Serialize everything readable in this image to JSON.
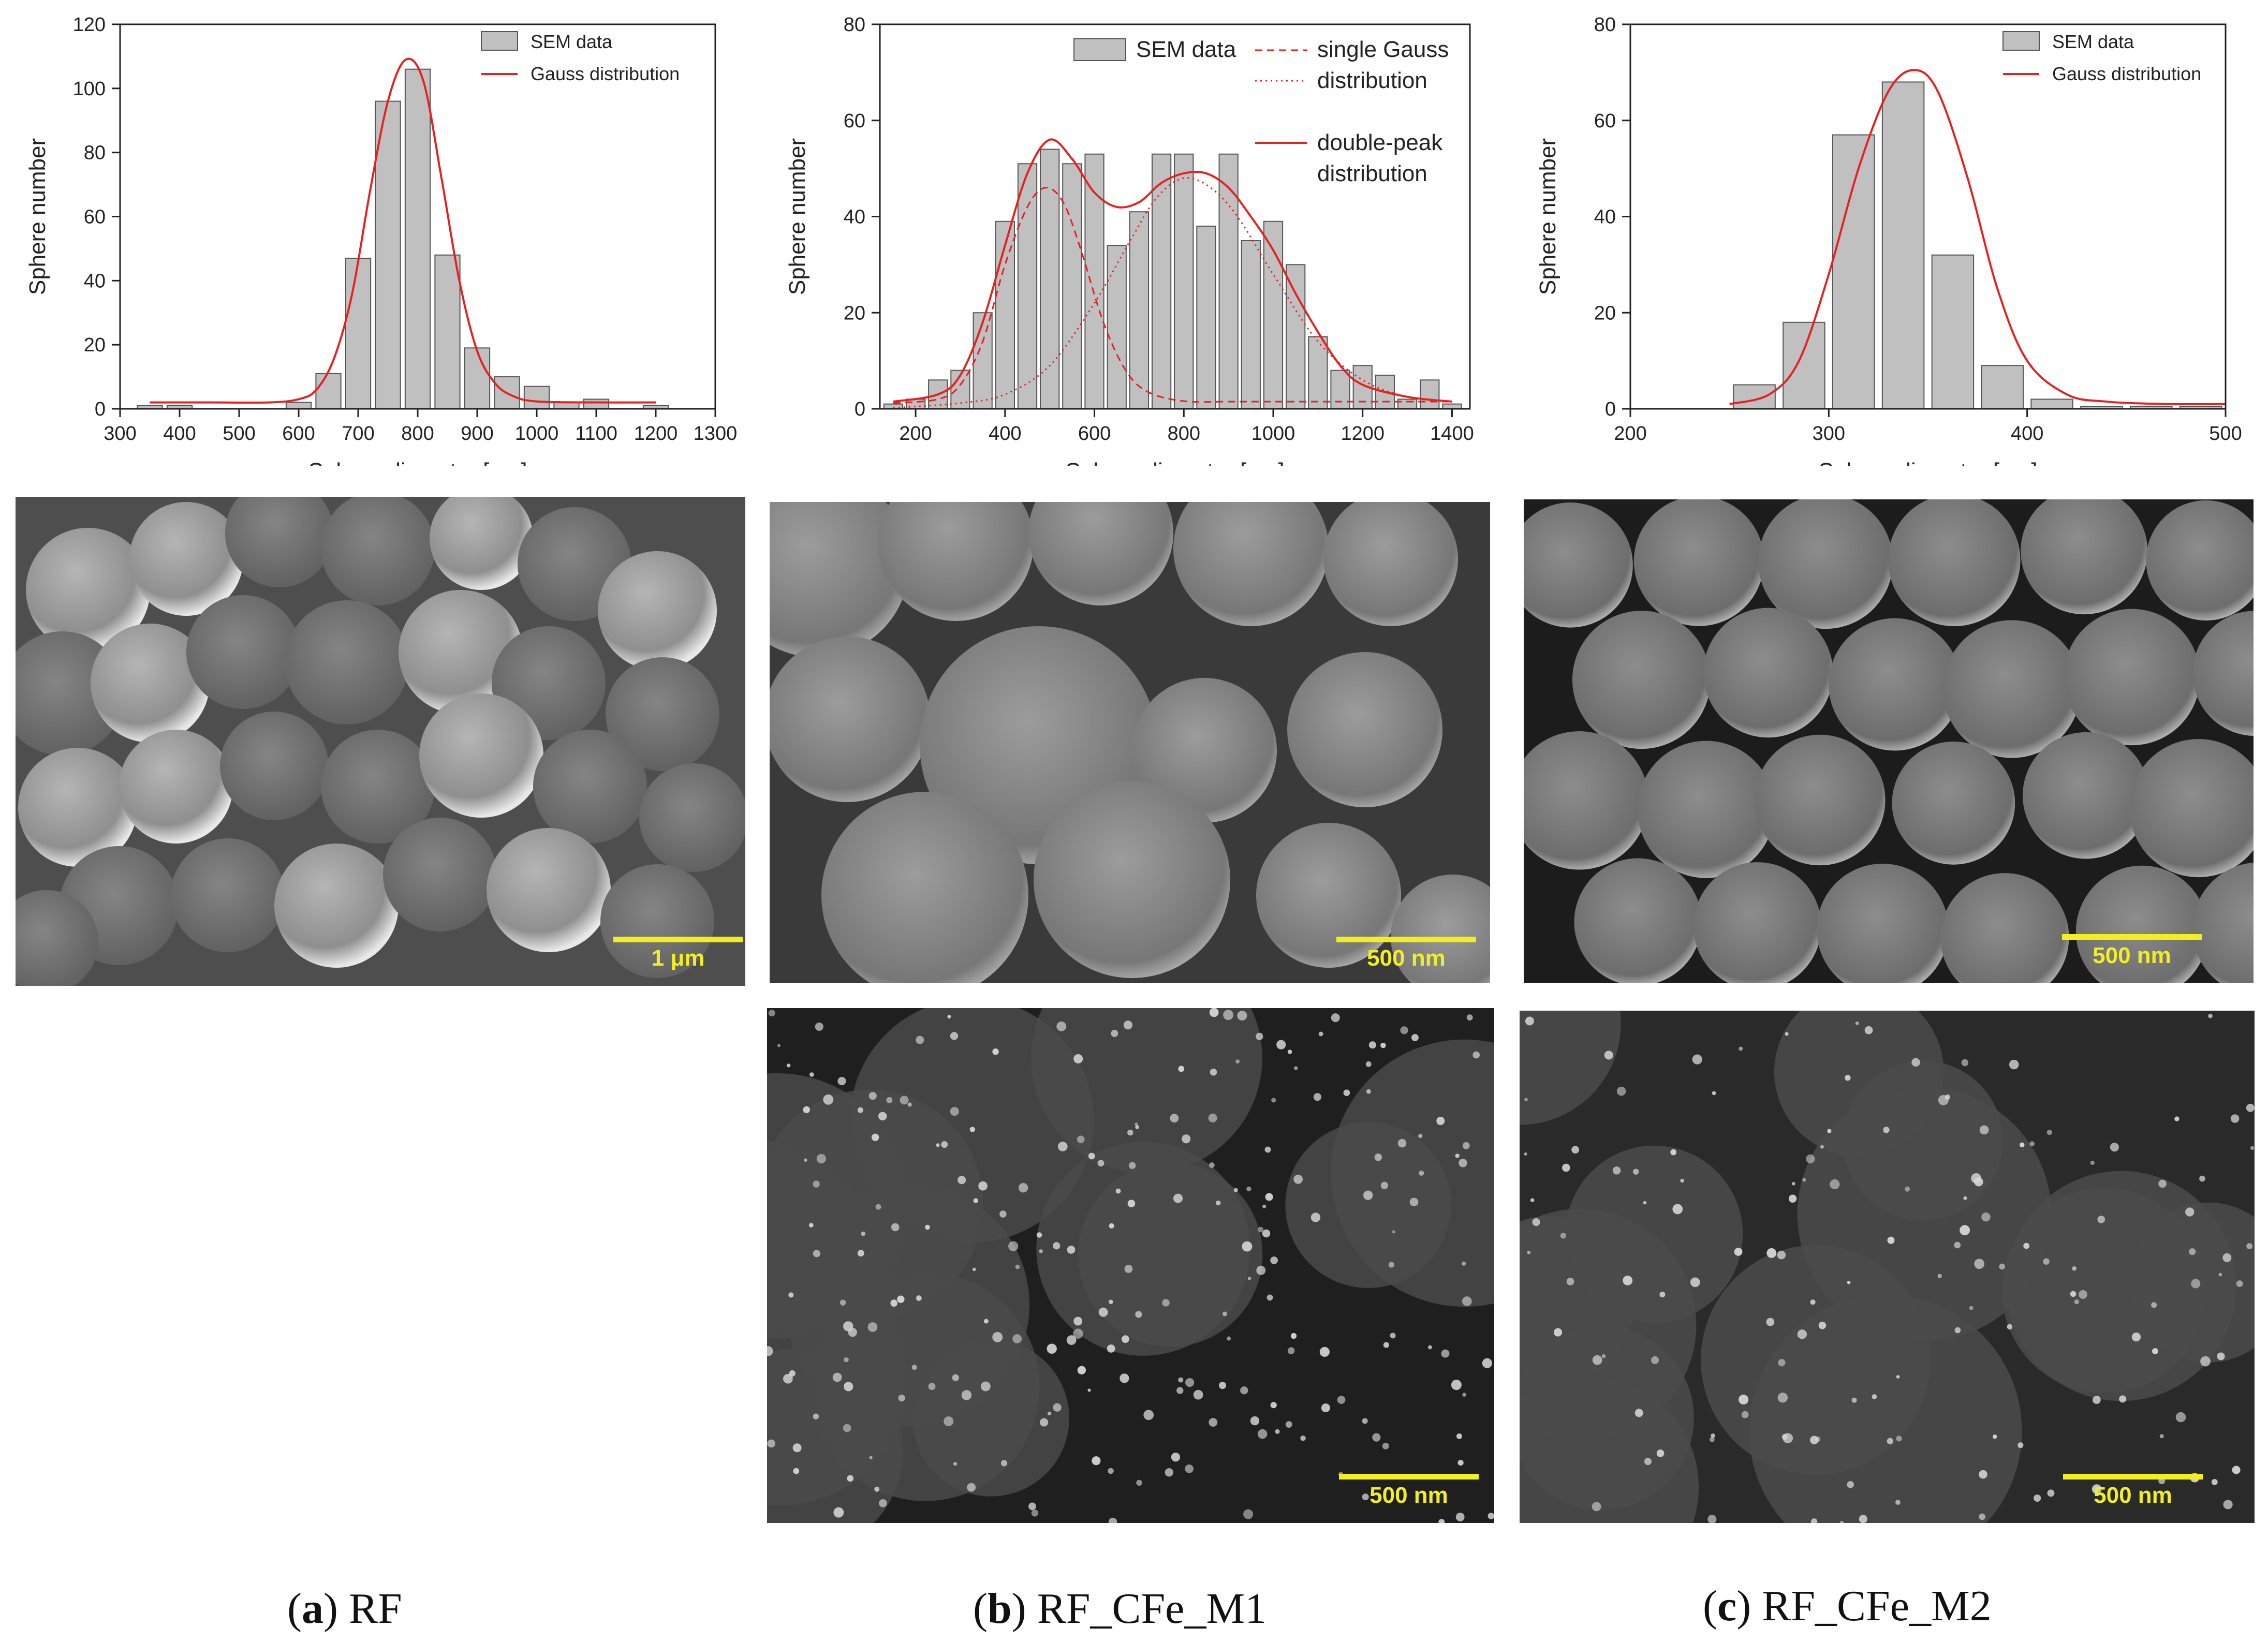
{
  "chart_data": [
    {
      "type": "bar",
      "panel": "a",
      "xlabel": "Sphere diameter [nm]",
      "ylabel": "Sphere number",
      "xlim": [
        300,
        1300
      ],
      "ylim": [
        0,
        120
      ],
      "xticks": [
        300,
        400,
        500,
        600,
        700,
        800,
        900,
        1000,
        1100,
        1200,
        1300
      ],
      "yticks": [
        0,
        20,
        40,
        60,
        80,
        100,
        120
      ],
      "bin_width": 50,
      "legend_position": "top-right",
      "bars": {
        "name": "SEM data",
        "x": [
          350,
          400,
          600,
          650,
          700,
          750,
          800,
          850,
          900,
          950,
          1000,
          1050,
          1100,
          1200
        ],
        "values": [
          1,
          1,
          2,
          11,
          47,
          96,
          106,
          48,
          19,
          10,
          7,
          2,
          3,
          1
        ]
      },
      "curves": [
        {
          "name": "Gauss distribution",
          "style": "solid",
          "x": [
            350,
            450,
            550,
            600,
            630,
            660,
            690,
            720,
            750,
            780,
            810,
            840,
            870,
            900,
            930,
            960,
            1000,
            1100,
            1200
          ],
          "values": [
            2,
            2,
            2,
            3,
            6,
            16,
            36,
            68,
            96,
            109,
            102,
            72,
            40,
            18,
            8,
            4,
            2.3,
            2,
            2
          ]
        }
      ]
    },
    {
      "type": "bar",
      "panel": "b",
      "xlabel": "Sphere diameter [nm]",
      "ylabel": "Sphere number",
      "xlim": [
        120,
        1440
      ],
      "ylim": [
        0,
        80
      ],
      "xticks": [
        200,
        400,
        600,
        800,
        1000,
        1200,
        1400
      ],
      "yticks": [
        0,
        20,
        40,
        60,
        80
      ],
      "bin_width": 50,
      "legend_position": "top-right",
      "bars": {
        "name": "SEM data",
        "x": [
          150,
          200,
          250,
          300,
          350,
          400,
          450,
          500,
          550,
          600,
          650,
          700,
          750,
          800,
          850,
          900,
          950,
          1000,
          1050,
          1100,
          1150,
          1200,
          1250,
          1300,
          1350,
          1400
        ],
        "values": [
          1,
          2,
          6,
          8,
          20,
          39,
          51,
          54,
          51,
          53,
          34,
          41,
          53,
          53,
          38,
          53,
          35,
          39,
          30,
          15,
          8,
          9,
          7,
          2,
          6,
          1
        ]
      },
      "curves": [
        {
          "name": "single Gauss distribution",
          "style": "dashed",
          "x": [
            150,
            250,
            300,
            350,
            400,
            450,
            490,
            530,
            570,
            620,
            670,
            720,
            800,
            900,
            1000,
            1400
          ],
          "values": [
            1.2,
            2,
            5,
            14,
            30,
            42,
            46,
            43,
            33,
            18,
            8,
            3.5,
            1.6,
            1.5,
            1.5,
            1.5
          ]
        },
        {
          "name": "single Gauss distribution",
          "style": "dotted",
          "x": [
            150,
            300,
            400,
            500,
            600,
            680,
            740,
            800,
            860,
            920,
            1000,
            1100,
            1200,
            1300,
            1400
          ],
          "values": [
            0.2,
            1.2,
            3,
            9,
            22,
            35,
            44,
            48,
            46,
            40,
            28,
            14,
            6,
            2.5,
            1.5
          ]
        },
        {
          "name": "double-peak distribution",
          "style": "solid",
          "x": [
            150,
            250,
            300,
            350,
            400,
            450,
            500,
            550,
            600,
            650,
            700,
            750,
            800,
            850,
            900,
            950,
            1000,
            1050,
            1100,
            1150,
            1200,
            1300,
            1400
          ],
          "values": [
            1.5,
            3,
            7,
            18,
            34,
            49,
            56,
            52,
            45,
            42,
            43,
            47,
            49,
            49,
            46,
            40,
            33,
            24,
            16,
            9,
            5,
            2.5,
            1.5
          ]
        }
      ]
    },
    {
      "type": "bar",
      "panel": "c",
      "xlabel": "Sphere diameter [nm]",
      "ylabel": "Sphere number",
      "xlim": [
        200,
        500
      ],
      "ylim": [
        0,
        80
      ],
      "xticks": [
        200,
        300,
        400,
        500
      ],
      "yticks": [
        0,
        20,
        40,
        60,
        80
      ],
      "bin_width": 25,
      "legend_position": "top-right",
      "bars": {
        "name": "SEM data",
        "x": [
          262.5,
          287.5,
          312.5,
          337.5,
          362.5,
          387.5,
          412.5,
          437.5,
          462.5,
          487.5
        ],
        "values": [
          5,
          18,
          57,
          68,
          32,
          9,
          2,
          0.5,
          0.5,
          0.5
        ]
      },
      "curves": [
        {
          "name": "Gauss distribution",
          "style": "solid",
          "x": [
            250,
            270,
            285,
            300,
            315,
            330,
            343,
            355,
            370,
            385,
            400,
            420,
            440,
            470,
            500
          ],
          "values": [
            1,
            3,
            10,
            28,
            50,
            66,
            70.5,
            66,
            48,
            25,
            10,
            3,
            1.5,
            1,
            1
          ]
        }
      ]
    }
  ],
  "legend_b": {
    "sem": "SEM data",
    "single_1": "single Gauss",
    "single_2": "distribution",
    "double_1": "double-peak",
    "double_2": "distribution"
  },
  "scalebars": {
    "a_top": "1 μm",
    "b_top": "500 nm",
    "c_top": "500 nm",
    "b_bottom": "500 nm",
    "c_bottom": "500 nm"
  },
  "captions": {
    "a": {
      "letter": "a",
      "label": "RF"
    },
    "b": {
      "letter": "b",
      "label": "RF_CFe_M1"
    },
    "c": {
      "letter": "c",
      "label": "RF_CFe_M2"
    }
  },
  "colors": {
    "bar_fill": "#c0c0c0",
    "bar_stroke": "#555555",
    "curve": "#e8201f",
    "scalebar": "#f2ee22"
  }
}
